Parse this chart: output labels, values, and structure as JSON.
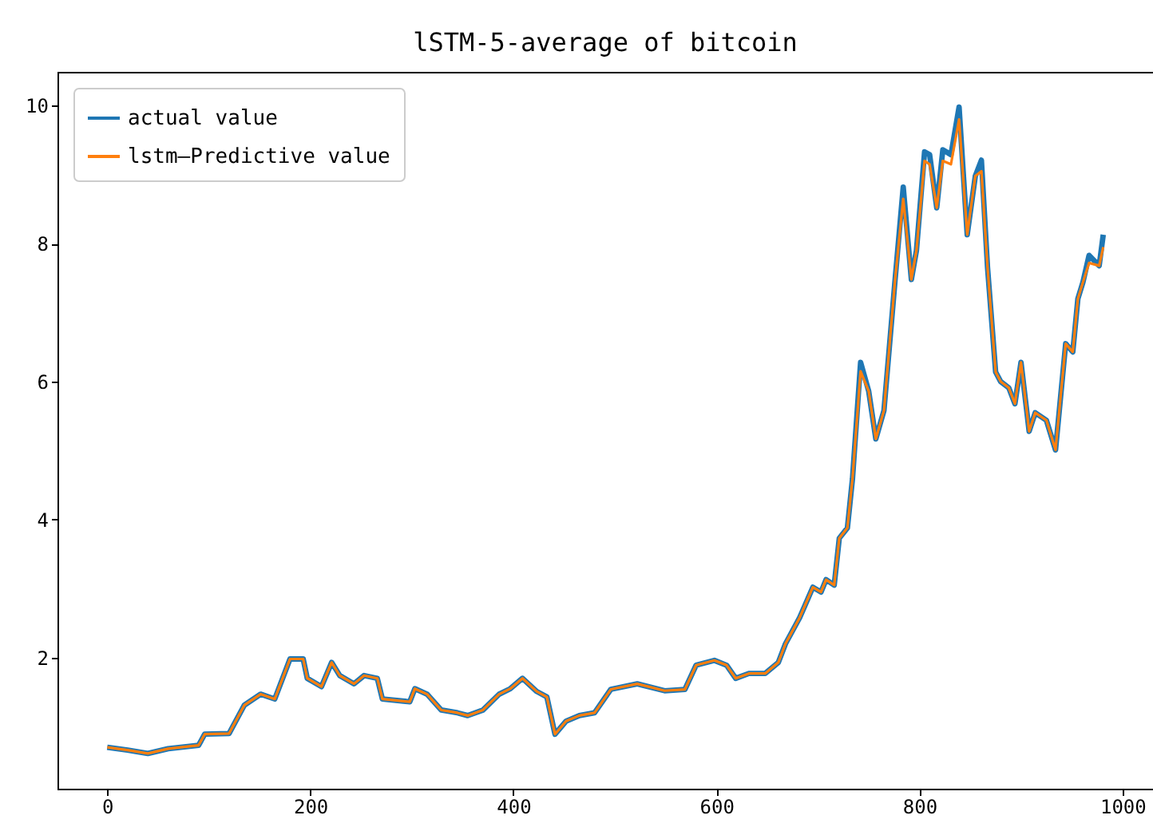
{
  "chart_data": {
    "type": "line",
    "title": "lSTM-5-average of bitcoin",
    "x": [
      0,
      20,
      40,
      60,
      90,
      96,
      120,
      135,
      151,
      165,
      180,
      193,
      197,
      211,
      221,
      229,
      243,
      253,
      266,
      271,
      298,
      303,
      315,
      329,
      345,
      355,
      370,
      386,
      397,
      409,
      423,
      433,
      441,
      452,
      465,
      480,
      496,
      522,
      549,
      569,
      580,
      598,
      610,
      619,
      632,
      648,
      661,
      668,
      682,
      695,
      703,
      708,
      716,
      721,
      729,
      734,
      742,
      750,
      757,
      765,
      776,
      784,
      792,
      797,
      805,
      810,
      817,
      823,
      831,
      839,
      847,
      855,
      861,
      867,
      875,
      880,
      888,
      894,
      900,
      908,
      914,
      925,
      934,
      944,
      951,
      956,
      961,
      967,
      977,
      981
    ],
    "series": [
      {
        "name": "actual value",
        "color": "#1f77b4",
        "values": [
          0.7,
          0.66,
          0.61,
          0.68,
          0.73,
          0.89,
          0.9,
          1.31,
          1.47,
          1.4,
          1.98,
          1.98,
          1.7,
          1.58,
          1.93,
          1.74,
          1.62,
          1.74,
          1.7,
          1.4,
          1.36,
          1.55,
          1.47,
          1.24,
          1.2,
          1.16,
          1.24,
          1.47,
          1.55,
          1.7,
          1.51,
          1.43,
          0.89,
          1.08,
          1.16,
          1.2,
          1.54,
          1.62,
          1.52,
          1.54,
          1.89,
          1.96,
          1.89,
          1.7,
          1.77,
          1.77,
          1.93,
          2.2,
          2.58,
          3.02,
          2.95,
          3.13,
          3.05,
          3.73,
          3.88,
          4.59,
          6.28,
          5.86,
          5.17,
          5.58,
          7.48,
          8.82,
          7.48,
          7.9,
          9.33,
          9.29,
          8.52,
          9.36,
          9.29,
          9.98,
          8.13,
          8.98,
          9.21,
          7.66,
          6.14,
          6.0,
          5.91,
          5.68,
          6.28,
          5.28,
          5.55,
          5.44,
          5.01,
          6.55,
          6.43,
          7.2,
          7.44,
          7.83,
          7.68,
          8.13
        ]
      },
      {
        "name": "lstm—Predictive value",
        "color": "#ff7f0e",
        "values": [
          0.7,
          0.66,
          0.61,
          0.68,
          0.73,
          0.89,
          0.9,
          1.31,
          1.47,
          1.4,
          1.98,
          1.98,
          1.7,
          1.58,
          1.93,
          1.74,
          1.62,
          1.74,
          1.7,
          1.4,
          1.36,
          1.55,
          1.47,
          1.24,
          1.2,
          1.16,
          1.24,
          1.47,
          1.55,
          1.7,
          1.51,
          1.43,
          0.89,
          1.08,
          1.16,
          1.2,
          1.54,
          1.62,
          1.52,
          1.54,
          1.89,
          1.96,
          1.89,
          1.7,
          1.77,
          1.77,
          1.93,
          2.2,
          2.58,
          3.02,
          2.95,
          3.13,
          3.05,
          3.73,
          3.88,
          4.59,
          6.15,
          5.86,
          5.17,
          5.58,
          7.48,
          8.65,
          7.48,
          7.9,
          9.2,
          9.15,
          8.52,
          9.2,
          9.15,
          9.8,
          8.13,
          8.98,
          9.05,
          7.66,
          6.14,
          6.0,
          5.91,
          5.68,
          6.28,
          5.28,
          5.55,
          5.44,
          5.01,
          6.55,
          6.43,
          7.2,
          7.44,
          7.72,
          7.68,
          7.95
        ]
      }
    ],
    "xlim": [
      -49,
      1030
    ],
    "xticks": [
      0,
      200,
      400,
      600,
      800,
      1000
    ],
    "ylim": [
      0.1,
      10.49
    ],
    "yticks": [
      2,
      4,
      6,
      8,
      10
    ],
    "legend": "top left"
  }
}
